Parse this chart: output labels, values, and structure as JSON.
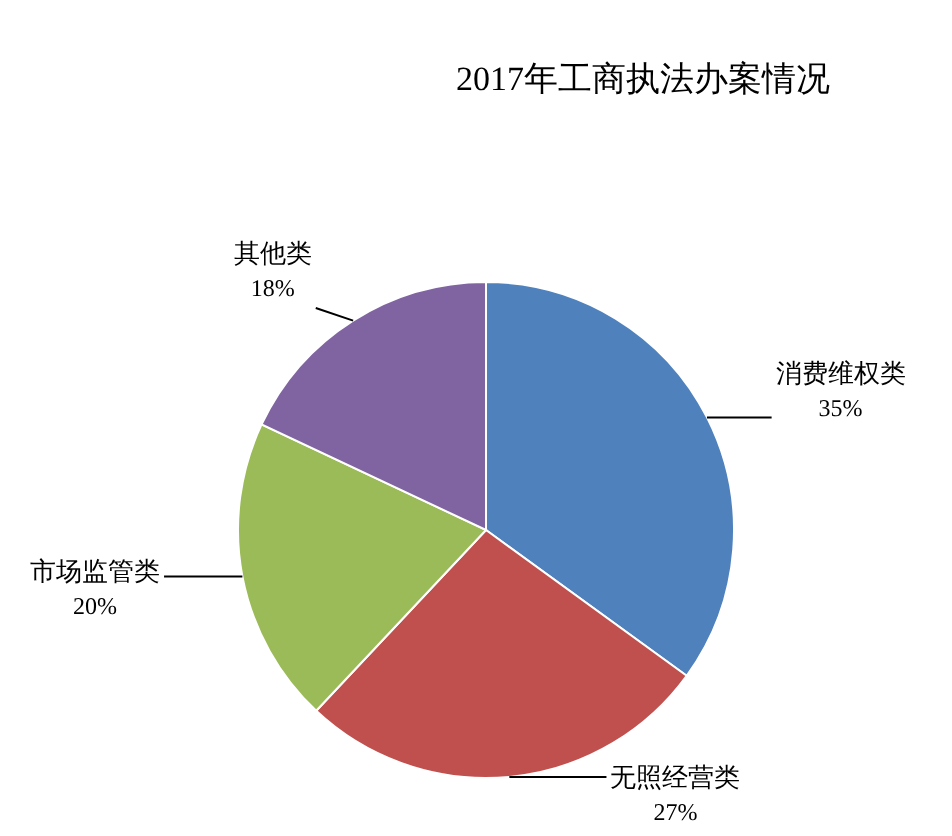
{
  "chart_data": {
    "type": "pie",
    "title": "2017年工商执法办案情况",
    "categories": [
      "消费维权类",
      "无照经营类",
      "市场监管类",
      "其他类"
    ],
    "values": [
      35,
      27,
      20,
      18
    ],
    "colors": [
      "#4f81bd",
      "#c0504d",
      "#9bbb59",
      "#8064a2"
    ],
    "value_labels": [
      "35%",
      "27%",
      "20%",
      "18%"
    ]
  }
}
